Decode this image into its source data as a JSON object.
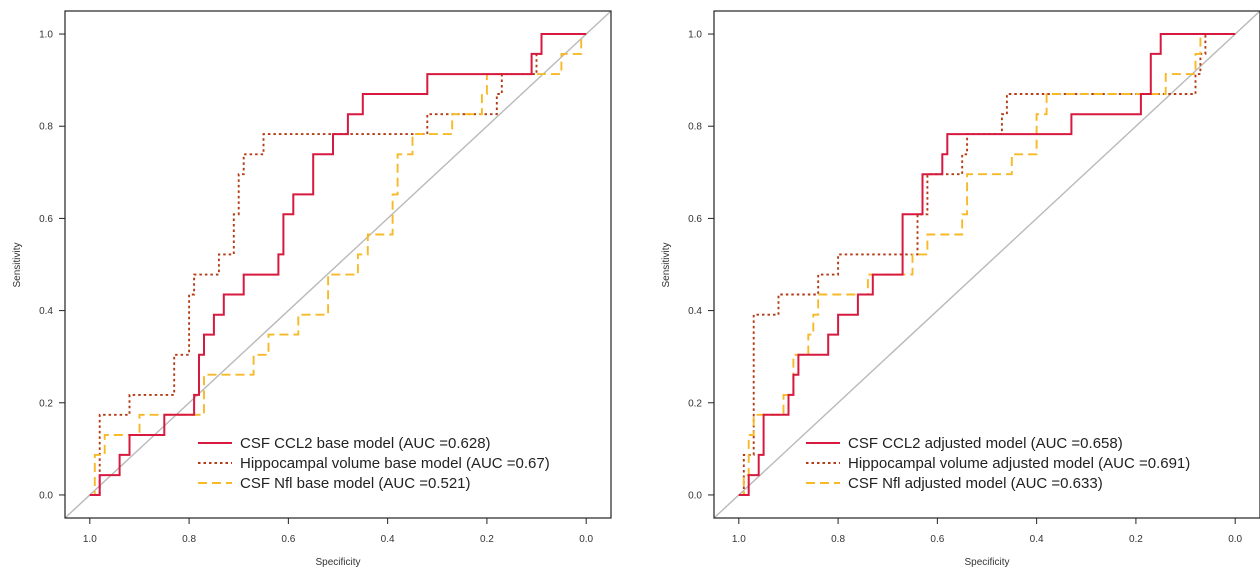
{
  "chart_data": [
    {
      "type": "line",
      "panel": "left",
      "xlabel": "Specificity",
      "ylabel": "Sensitivity",
      "xlim": [
        1.05,
        -0.05
      ],
      "ylim": [
        -0.05,
        1.05
      ],
      "x_ticks": [
        "1.0",
        "0.8",
        "0.6",
        "0.4",
        "0.2",
        "0.0"
      ],
      "y_ticks": [
        "0.0",
        "0.2",
        "0.4",
        "0.6",
        "0.8",
        "1.0"
      ],
      "x_tick_values": [
        1.0,
        0.8,
        0.6,
        0.4,
        0.2,
        0.0
      ],
      "y_tick_values": [
        0.0,
        0.2,
        0.4,
        0.6,
        0.8,
        1.0
      ],
      "grid": false,
      "legend_position": "bottom-right",
      "reference_line": true,
      "series": [
        {
          "name": "CSF CCL2 base model (AUC =0.628)",
          "color": "#d7193f",
          "style": "solid",
          "points": [
            [
              1.0,
              0.0
            ],
            [
              0.98,
              0.0
            ],
            [
              0.98,
              0.043
            ],
            [
              0.94,
              0.043
            ],
            [
              0.94,
              0.087
            ],
            [
              0.92,
              0.087
            ],
            [
              0.92,
              0.13
            ],
            [
              0.85,
              0.13
            ],
            [
              0.85,
              0.174
            ],
            [
              0.79,
              0.174
            ],
            [
              0.79,
              0.217
            ],
            [
              0.78,
              0.217
            ],
            [
              0.78,
              0.304
            ],
            [
              0.77,
              0.304
            ],
            [
              0.77,
              0.348
            ],
            [
              0.75,
              0.348
            ],
            [
              0.75,
              0.391
            ],
            [
              0.73,
              0.391
            ],
            [
              0.73,
              0.435
            ],
            [
              0.69,
              0.435
            ],
            [
              0.69,
              0.478
            ],
            [
              0.62,
              0.478
            ],
            [
              0.62,
              0.522
            ],
            [
              0.61,
              0.522
            ],
            [
              0.61,
              0.609
            ],
            [
              0.59,
              0.609
            ],
            [
              0.59,
              0.652
            ],
            [
              0.55,
              0.652
            ],
            [
              0.55,
              0.739
            ],
            [
              0.51,
              0.739
            ],
            [
              0.51,
              0.783
            ],
            [
              0.48,
              0.783
            ],
            [
              0.48,
              0.826
            ],
            [
              0.45,
              0.826
            ],
            [
              0.45,
              0.87
            ],
            [
              0.32,
              0.87
            ],
            [
              0.32,
              0.913
            ],
            [
              0.11,
              0.913
            ],
            [
              0.11,
              0.957
            ],
            [
              0.09,
              0.957
            ],
            [
              0.09,
              1.0
            ],
            [
              0.0,
              1.0
            ]
          ]
        },
        {
          "name": "Hippocampal volume base model (AUC =0.67)",
          "color": "#b33a14",
          "style": "dotted",
          "points": [
            [
              1.0,
              0.0
            ],
            [
              0.98,
              0.0
            ],
            [
              0.98,
              0.174
            ],
            [
              0.92,
              0.174
            ],
            [
              0.92,
              0.217
            ],
            [
              0.83,
              0.217
            ],
            [
              0.83,
              0.304
            ],
            [
              0.8,
              0.304
            ],
            [
              0.8,
              0.435
            ],
            [
              0.79,
              0.435
            ],
            [
              0.79,
              0.478
            ],
            [
              0.74,
              0.478
            ],
            [
              0.74,
              0.522
            ],
            [
              0.71,
              0.522
            ],
            [
              0.71,
              0.609
            ],
            [
              0.7,
              0.609
            ],
            [
              0.7,
              0.696
            ],
            [
              0.69,
              0.696
            ],
            [
              0.69,
              0.739
            ],
            [
              0.65,
              0.739
            ],
            [
              0.65,
              0.783
            ],
            [
              0.32,
              0.783
            ],
            [
              0.32,
              0.826
            ],
            [
              0.18,
              0.826
            ],
            [
              0.18,
              0.87
            ],
            [
              0.17,
              0.87
            ],
            [
              0.17,
              0.913
            ],
            [
              0.1,
              0.913
            ],
            [
              0.1,
              0.957
            ],
            [
              0.09,
              0.957
            ],
            [
              0.09,
              1.0
            ],
            [
              0.0,
              1.0
            ]
          ]
        },
        {
          "name": "CSF Nfl base model (AUC =0.521)",
          "color": "#f7b928",
          "style": "dashed",
          "points": [
            [
              1.0,
              0.0
            ],
            [
              0.99,
              0.0
            ],
            [
              0.99,
              0.087
            ],
            [
              0.97,
              0.087
            ],
            [
              0.97,
              0.13
            ],
            [
              0.9,
              0.13
            ],
            [
              0.9,
              0.174
            ],
            [
              0.77,
              0.174
            ],
            [
              0.77,
              0.261
            ],
            [
              0.67,
              0.261
            ],
            [
              0.67,
              0.304
            ],
            [
              0.64,
              0.304
            ],
            [
              0.64,
              0.348
            ],
            [
              0.58,
              0.348
            ],
            [
              0.58,
              0.391
            ],
            [
              0.52,
              0.391
            ],
            [
              0.52,
              0.478
            ],
            [
              0.46,
              0.478
            ],
            [
              0.46,
              0.522
            ],
            [
              0.44,
              0.522
            ],
            [
              0.44,
              0.565
            ],
            [
              0.39,
              0.565
            ],
            [
              0.39,
              0.652
            ],
            [
              0.38,
              0.652
            ],
            [
              0.38,
              0.739
            ],
            [
              0.35,
              0.739
            ],
            [
              0.35,
              0.783
            ],
            [
              0.27,
              0.783
            ],
            [
              0.27,
              0.826
            ],
            [
              0.21,
              0.826
            ],
            [
              0.21,
              0.87
            ],
            [
              0.2,
              0.87
            ],
            [
              0.2,
              0.913
            ],
            [
              0.05,
              0.913
            ],
            [
              0.05,
              0.957
            ],
            [
              0.01,
              0.957
            ],
            [
              0.01,
              1.0
            ],
            [
              0.0,
              1.0
            ]
          ]
        }
      ]
    },
    {
      "type": "line",
      "panel": "right",
      "xlabel": "Specificity",
      "ylabel": "Sensitivity",
      "xlim": [
        1.05,
        -0.05
      ],
      "ylim": [
        -0.05,
        1.05
      ],
      "x_ticks": [
        "1.0",
        "0.8",
        "0.6",
        "0.4",
        "0.2",
        "0.0"
      ],
      "y_ticks": [
        "0.0",
        "0.2",
        "0.4",
        "0.6",
        "0.8",
        "1.0"
      ],
      "x_tick_values": [
        1.0,
        0.8,
        0.6,
        0.4,
        0.2,
        0.0
      ],
      "y_tick_values": [
        0.0,
        0.2,
        0.4,
        0.6,
        0.8,
        1.0
      ],
      "grid": false,
      "legend_position": "bottom-right",
      "reference_line": true,
      "series": [
        {
          "name": "CSF CCL2 adjusted model (AUC =0.658)",
          "color": "#d7193f",
          "style": "solid",
          "points": [
            [
              1.0,
              0.0
            ],
            [
              0.98,
              0.0
            ],
            [
              0.98,
              0.043
            ],
            [
              0.96,
              0.043
            ],
            [
              0.96,
              0.087
            ],
            [
              0.95,
              0.087
            ],
            [
              0.95,
              0.174
            ],
            [
              0.9,
              0.174
            ],
            [
              0.9,
              0.217
            ],
            [
              0.89,
              0.217
            ],
            [
              0.89,
              0.261
            ],
            [
              0.88,
              0.261
            ],
            [
              0.88,
              0.304
            ],
            [
              0.82,
              0.304
            ],
            [
              0.82,
              0.348
            ],
            [
              0.8,
              0.348
            ],
            [
              0.8,
              0.391
            ],
            [
              0.76,
              0.391
            ],
            [
              0.76,
              0.435
            ],
            [
              0.73,
              0.435
            ],
            [
              0.73,
              0.478
            ],
            [
              0.67,
              0.478
            ],
            [
              0.67,
              0.609
            ],
            [
              0.63,
              0.609
            ],
            [
              0.63,
              0.696
            ],
            [
              0.59,
              0.696
            ],
            [
              0.59,
              0.739
            ],
            [
              0.58,
              0.739
            ],
            [
              0.58,
              0.783
            ],
            [
              0.39,
              0.783
            ],
            [
              0.39,
              0.783
            ],
            [
              0.33,
              0.783
            ],
            [
              0.33,
              0.826
            ],
            [
              0.19,
              0.826
            ],
            [
              0.19,
              0.87
            ],
            [
              0.17,
              0.87
            ],
            [
              0.17,
              0.957
            ],
            [
              0.15,
              0.957
            ],
            [
              0.15,
              1.0
            ],
            [
              0.0,
              1.0
            ]
          ]
        },
        {
          "name": "Hippocampal volume adjusted model (AUC =0.691)",
          "color": "#b33a14",
          "style": "dotted",
          "points": [
            [
              1.0,
              0.0
            ],
            [
              0.99,
              0.0
            ],
            [
              0.99,
              0.087
            ],
            [
              0.97,
              0.087
            ],
            [
              0.97,
              0.391
            ],
            [
              0.92,
              0.391
            ],
            [
              0.92,
              0.435
            ],
            [
              0.84,
              0.435
            ],
            [
              0.84,
              0.478
            ],
            [
              0.8,
              0.478
            ],
            [
              0.8,
              0.522
            ],
            [
              0.64,
              0.522
            ],
            [
              0.64,
              0.609
            ],
            [
              0.62,
              0.609
            ],
            [
              0.62,
              0.696
            ],
            [
              0.55,
              0.696
            ],
            [
              0.55,
              0.739
            ],
            [
              0.54,
              0.739
            ],
            [
              0.54,
              0.783
            ],
            [
              0.47,
              0.783
            ],
            [
              0.47,
              0.826
            ],
            [
              0.46,
              0.826
            ],
            [
              0.46,
              0.87
            ],
            [
              0.08,
              0.87
            ],
            [
              0.08,
              0.913
            ],
            [
              0.07,
              0.913
            ],
            [
              0.07,
              0.957
            ],
            [
              0.06,
              0.957
            ],
            [
              0.06,
              1.0
            ],
            [
              0.0,
              1.0
            ]
          ]
        },
        {
          "name": "CSF Nfl adjusted model (AUC =0.633)",
          "color": "#f7b928",
          "style": "dashed",
          "points": [
            [
              1.0,
              0.0
            ],
            [
              0.99,
              0.0
            ],
            [
              0.99,
              0.043
            ],
            [
              0.98,
              0.043
            ],
            [
              0.98,
              0.13
            ],
            [
              0.97,
              0.13
            ],
            [
              0.97,
              0.174
            ],
            [
              0.91,
              0.174
            ],
            [
              0.91,
              0.217
            ],
            [
              0.89,
              0.217
            ],
            [
              0.89,
              0.304
            ],
            [
              0.86,
              0.304
            ],
            [
              0.86,
              0.348
            ],
            [
              0.85,
              0.348
            ],
            [
              0.85,
              0.391
            ],
            [
              0.84,
              0.391
            ],
            [
              0.84,
              0.435
            ],
            [
              0.74,
              0.435
            ],
            [
              0.74,
              0.478
            ],
            [
              0.65,
              0.478
            ],
            [
              0.65,
              0.522
            ],
            [
              0.62,
              0.522
            ],
            [
              0.62,
              0.565
            ],
            [
              0.55,
              0.565
            ],
            [
              0.55,
              0.609
            ],
            [
              0.54,
              0.609
            ],
            [
              0.54,
              0.696
            ],
            [
              0.45,
              0.696
            ],
            [
              0.45,
              0.739
            ],
            [
              0.4,
              0.739
            ],
            [
              0.4,
              0.826
            ],
            [
              0.38,
              0.826
            ],
            [
              0.38,
              0.87
            ],
            [
              0.19,
              0.87
            ],
            [
              0.19,
              0.87
            ],
            [
              0.14,
              0.87
            ],
            [
              0.14,
              0.913
            ],
            [
              0.08,
              0.913
            ],
            [
              0.08,
              0.957
            ],
            [
              0.07,
              0.957
            ],
            [
              0.07,
              1.0
            ],
            [
              0.0,
              1.0
            ]
          ]
        }
      ]
    }
  ]
}
